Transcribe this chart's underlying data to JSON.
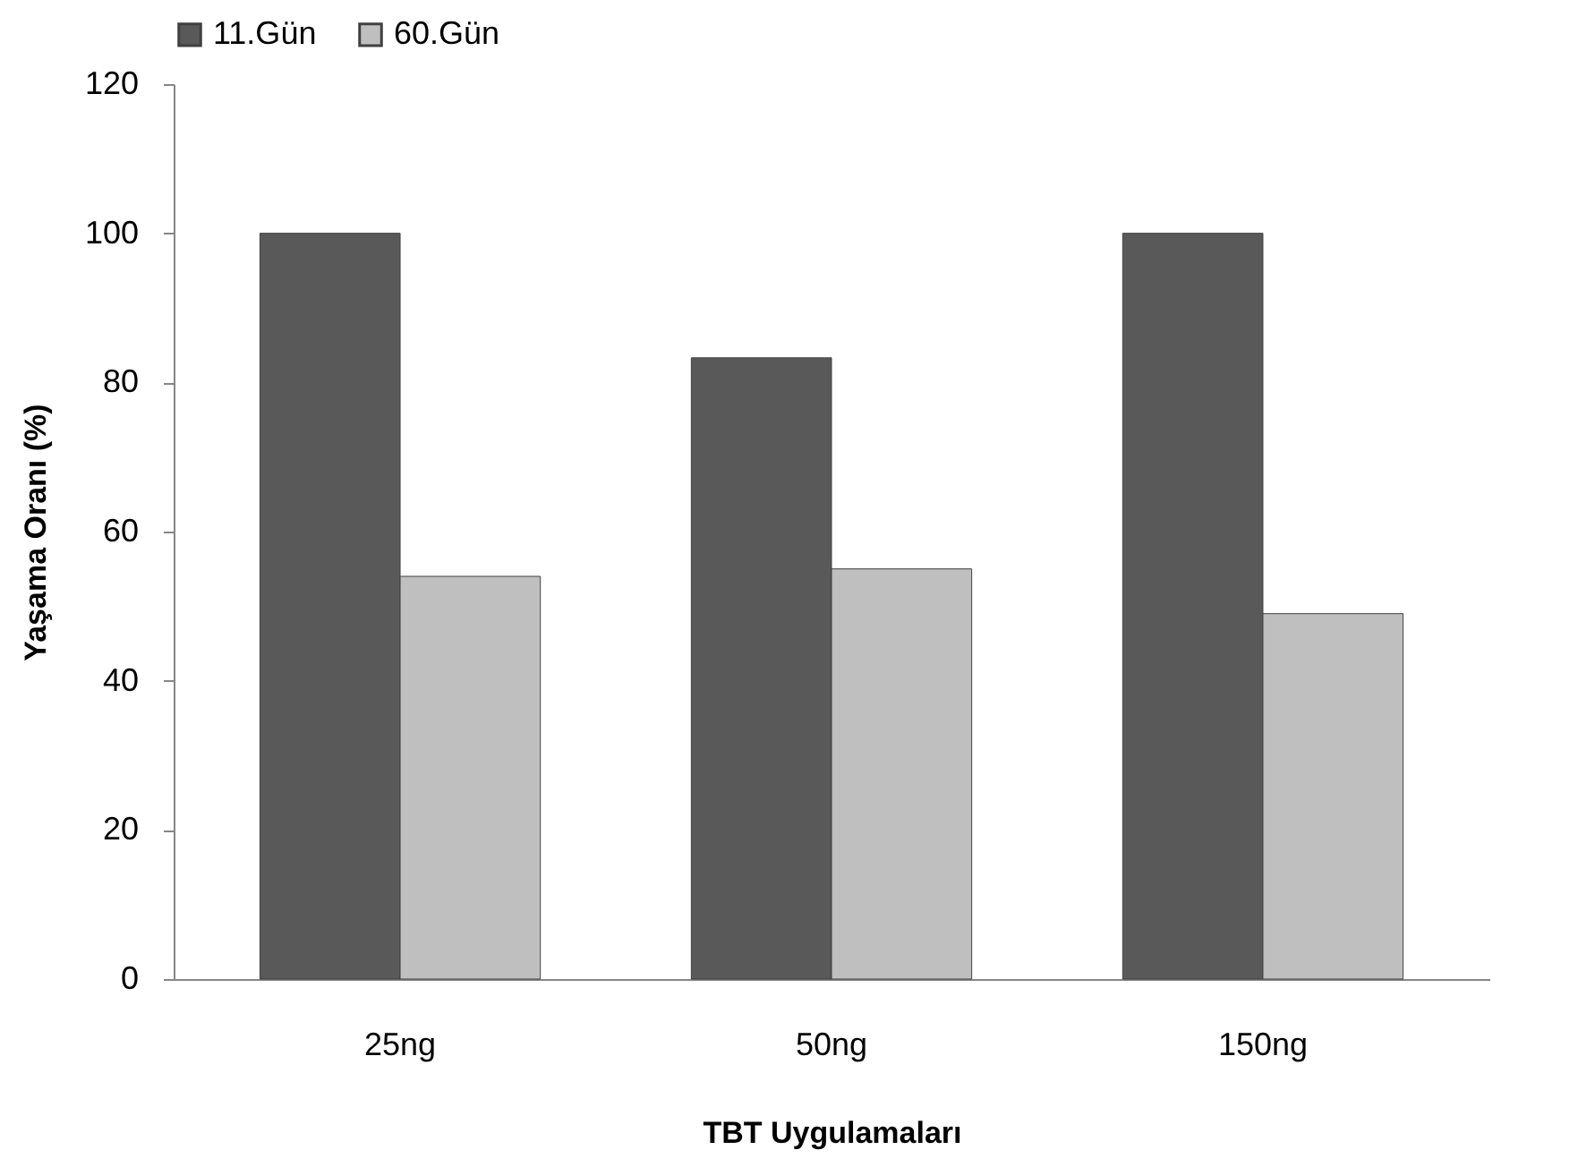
{
  "chart_data": {
    "type": "bar",
    "xlabel": "TBT Uygulamaları",
    "ylabel": "Yaşama Oranı (%)",
    "categories": [
      "25ng",
      "50ng",
      "150ng"
    ],
    "series": [
      {
        "name": "11.Gün",
        "color": "#595959",
        "values": [
          100,
          83.3,
          100
        ]
      },
      {
        "name": "60.Gün",
        "color": "#bfbfbf",
        "values": [
          54,
          55,
          49
        ]
      }
    ],
    "ylim": [
      0,
      120
    ],
    "yticks": [
      0,
      20,
      40,
      60,
      80,
      100,
      120
    ],
    "grid": false,
    "legend": "top"
  }
}
